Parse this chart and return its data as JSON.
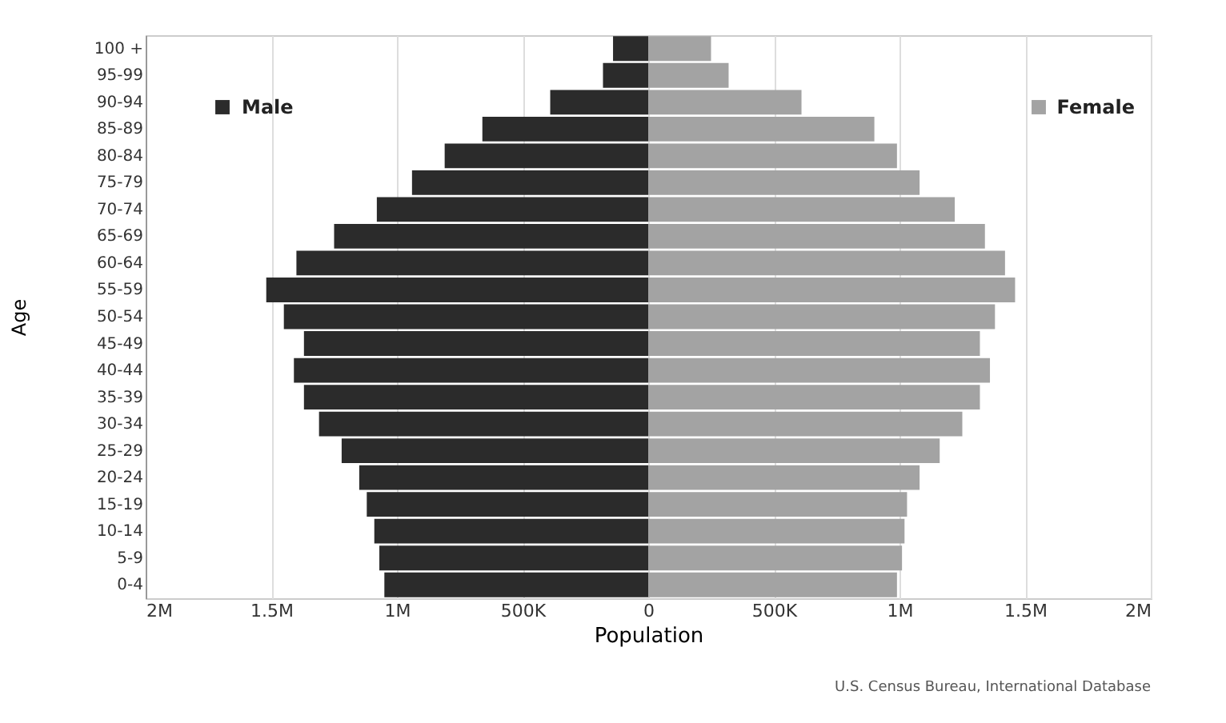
{
  "chart_data": {
    "type": "bar",
    "orientation": "horizontal",
    "xlabel": "Population",
    "ylabel": "Age",
    "categories": [
      "100 +",
      "95-99",
      "90-94",
      "85-89",
      "80-84",
      "75-79",
      "70-74",
      "65-69",
      "60-64",
      "55-59",
      "50-54",
      "45-49",
      "40-44",
      "35-39",
      "30-34",
      "25-29",
      "20-24",
      "15-19",
      "10-14",
      "5-9",
      "0-4"
    ],
    "series": [
      {
        "name": "Male",
        "color": "#2b2b2b",
        "values": [
          -140000,
          -180000,
          -390000,
          -660000,
          -810000,
          -940000,
          -1080000,
          -1250000,
          -1400000,
          -1520000,
          -1450000,
          -1370000,
          -1410000,
          -1370000,
          -1310000,
          -1220000,
          -1150000,
          -1120000,
          -1090000,
          -1070000,
          -1050000
        ]
      },
      {
        "name": "Female",
        "color": "#a3a3a3",
        "values": [
          250000,
          320000,
          610000,
          900000,
          990000,
          1080000,
          1220000,
          1340000,
          1420000,
          1460000,
          1380000,
          1320000,
          1360000,
          1320000,
          1250000,
          1160000,
          1080000,
          1030000,
          1020000,
          1010000,
          990000
        ]
      }
    ],
    "xlim": [
      -2000000,
      2000000
    ],
    "xticks": [
      {
        "value": -2000000,
        "label": "2M"
      },
      {
        "value": -1500000,
        "label": "1.5M"
      },
      {
        "value": -1000000,
        "label": "1M"
      },
      {
        "value": -500000,
        "label": "500K"
      },
      0,
      {
        "value": 500000,
        "label": "500K"
      },
      {
        "value": 1000000,
        "label": "1M"
      },
      {
        "value": 1500000,
        "label": "1.5M"
      },
      {
        "value": 2000000,
        "label": "2M"
      }
    ],
    "grid": "x",
    "legend": "top",
    "stacked": true,
    "annotations": [
      "U.S. Census Bureau, International Database"
    ]
  }
}
